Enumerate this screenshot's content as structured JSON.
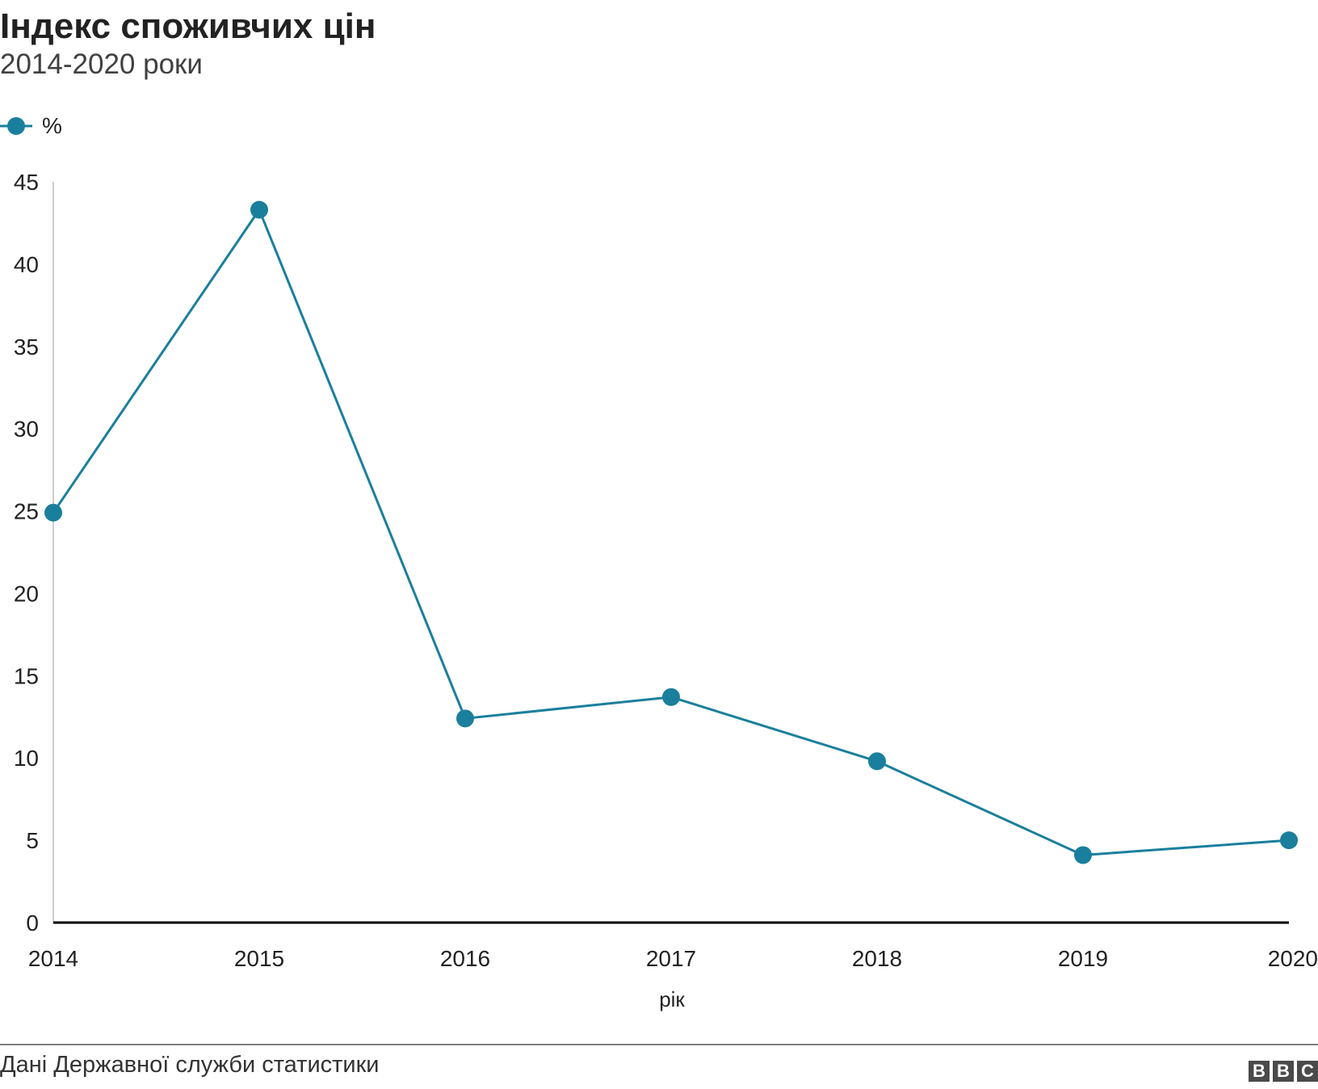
{
  "header": {
    "title": "Індекс споживчих цін",
    "subtitle": "2014-2020 роки"
  },
  "legend": {
    "label": "%"
  },
  "footer": {
    "source": "Дані Державної служби статистики",
    "logo": "BBC"
  },
  "colors": {
    "series": "#1a7f9c",
    "axis": "#000000",
    "y_axis_line": "#cccccc"
  },
  "chart_data": {
    "type": "line",
    "title": "Індекс споживчих цін",
    "subtitle": "2014-2020 роки",
    "xlabel": "рік",
    "ylabel": "",
    "x": [
      "2014",
      "2015",
      "2016",
      "2017",
      "2018",
      "2019",
      "2020"
    ],
    "series": [
      {
        "name": "%",
        "values": [
          24.9,
          43.3,
          12.4,
          13.7,
          9.8,
          4.1,
          5.0
        ]
      }
    ],
    "ylim": [
      0,
      45
    ],
    "yticks": [
      0,
      5,
      10,
      15,
      20,
      25,
      30,
      35,
      40,
      45
    ],
    "grid": false,
    "legend_position": "top-left",
    "markers": true
  }
}
